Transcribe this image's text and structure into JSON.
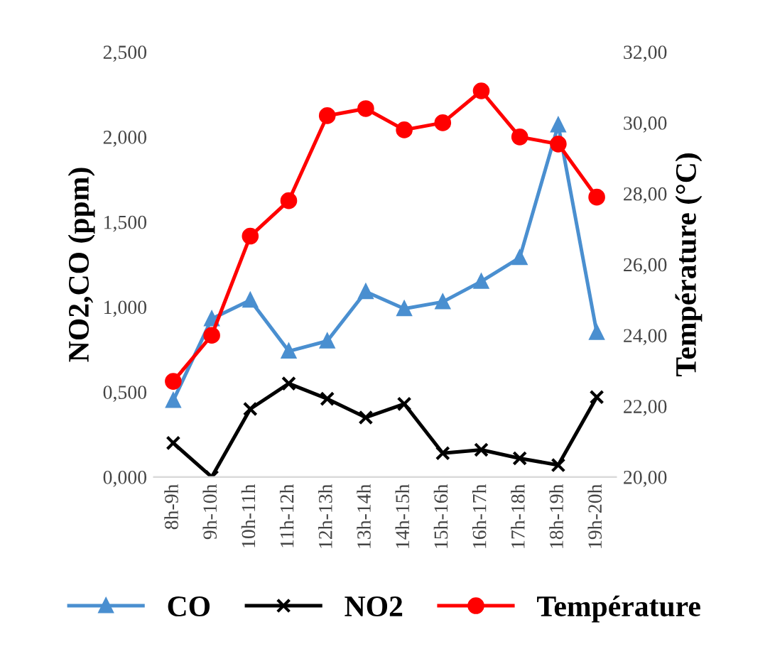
{
  "chart_data": {
    "type": "line",
    "ylabel": "NO2,CO (ppm)",
    "y2label": "Température (°C)",
    "categories": [
      "8h-9h",
      "9h-10h",
      "10h-11h",
      "11h-12h",
      "12h-13h",
      "13h-14h",
      "14h-15h",
      "15h-16h",
      "16h-17h",
      "17h-18h",
      "18h-19h",
      "19h-20h"
    ],
    "series": [
      {
        "name": "CO",
        "color": "#4a8fd0",
        "marker": "triangle",
        "values": [
          0.45,
          0.93,
          1.04,
          0.74,
          0.8,
          1.09,
          0.99,
          1.03,
          1.15,
          1.29,
          2.07,
          0.85
        ]
      },
      {
        "name": "NO2",
        "color": "#000000",
        "marker": "cross",
        "values": [
          0.2,
          0.0,
          0.4,
          0.55,
          0.46,
          0.35,
          0.43,
          0.14,
          0.16,
          0.11,
          0.07,
          0.47
        ]
      },
      {
        "name": "Température",
        "color": "#ff0000",
        "marker": "circle",
        "axis": "y2",
        "values": [
          22.7,
          24.0,
          26.8,
          27.8,
          30.2,
          30.4,
          29.8,
          30.0,
          30.9,
          29.6,
          29.4,
          27.9
        ]
      }
    ],
    "ylim": [
      0,
      2.5
    ],
    "yticks": [
      {
        "value": 0,
        "label": "0,000"
      },
      {
        "value": 0.5,
        "label": "0,500"
      },
      {
        "value": 1.0,
        "label": "1,000"
      },
      {
        "value": 1.5,
        "label": "1,500"
      },
      {
        "value": 2.0,
        "label": "2,000"
      },
      {
        "value": 2.5,
        "label": "2,500"
      }
    ],
    "y2lim": [
      20,
      32
    ],
    "y2ticks": [
      {
        "value": 20,
        "label": "20,00"
      },
      {
        "value": 22,
        "label": "22,00"
      },
      {
        "value": 24,
        "label": "24,00"
      },
      {
        "value": 26,
        "label": "26,00"
      },
      {
        "value": 28,
        "label": "28,00"
      },
      {
        "value": 30,
        "label": "30,00"
      },
      {
        "value": 32,
        "label": "32,00"
      }
    ],
    "legend": "bottom",
    "grid": false
  }
}
